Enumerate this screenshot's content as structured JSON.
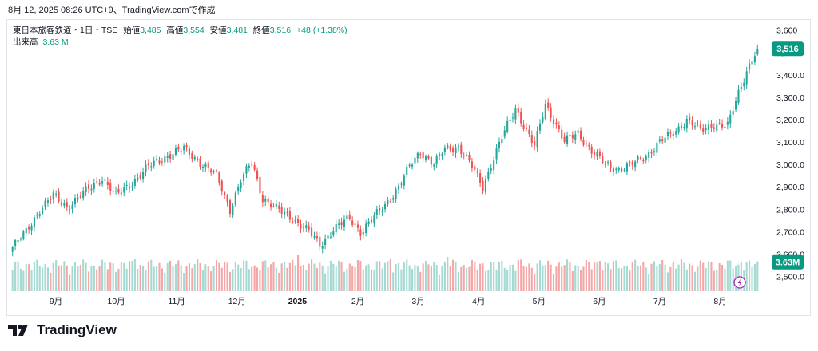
{
  "header": {
    "caption": "8月 12, 2025 08:26 UTC+9、TradingView.comで作成"
  },
  "legend": {
    "symbol": "東日本旅客鉄道・1日・TSE",
    "open_label": "始値",
    "open": "3,485",
    "high_label": "高値",
    "high": "3,554",
    "low_label": "安値",
    "low": "3,481",
    "close_label": "終値",
    "close": "3,516",
    "change": "+48 (+1.38%)",
    "volume_label": "出来高",
    "volume": "3.63 M"
  },
  "price_tag": "3,516",
  "volume_tag": "3.63M",
  "brand": {
    "name": "TradingView",
    "logo": "tradingview-logo-icon"
  },
  "colors": {
    "up": "#26a69a",
    "down": "#ef5350",
    "up_vol": "#a5dad3",
    "down_vol": "#f5a6a6",
    "tag": "#089981"
  },
  "chart_data": {
    "type": "candlestick",
    "price_axis": {
      "ylim": [
        2470,
        3620
      ],
      "ticks": [
        2500,
        2600,
        2700,
        2800,
        2900,
        3000,
        3100,
        3200,
        3300,
        3400,
        3500,
        3600
      ],
      "tick_labels": [
        "2,500.0",
        "2,600.0",
        "2,700.0",
        "2,800.0",
        "2,900.0",
        "3,000.0",
        "3,100.0",
        "3,200.0",
        "3,300.0",
        "3,400.0",
        "3,500.0",
        "3,600"
      ]
    },
    "time_axis": {
      "labels": [
        "9月",
        "10月",
        "11月",
        "12月",
        "2025",
        "2月",
        "3月",
        "4月",
        "5月",
        "6月",
        "7月",
        "8月"
      ],
      "bold": [
        "2025"
      ]
    },
    "date_range": [
      "2024-08",
      "2025-08-08"
    ],
    "last_close": 3516,
    "last_volume_m": 3.63,
    "close_path": [
      [
        0,
        2630
      ],
      [
        5,
        2700
      ],
      [
        10,
        2800
      ],
      [
        15,
        2860
      ],
      [
        20,
        2810
      ],
      [
        27,
        2880
      ],
      [
        33,
        2940
      ],
      [
        38,
        2860
      ],
      [
        44,
        2920
      ],
      [
        50,
        2990
      ],
      [
        57,
        3040
      ],
      [
        63,
        3070
      ],
      [
        70,
        3000
      ],
      [
        75,
        2950
      ],
      [
        80,
        2800
      ],
      [
        84,
        2930
      ],
      [
        88,
        3010
      ],
      [
        92,
        2850
      ],
      [
        97,
        2800
      ],
      [
        103,
        2760
      ],
      [
        109,
        2700
      ],
      [
        113,
        2640
      ],
      [
        118,
        2710
      ],
      [
        124,
        2760
      ],
      [
        128,
        2700
      ],
      [
        132,
        2750
      ],
      [
        137,
        2820
      ],
      [
        142,
        2900
      ],
      [
        146,
        2990
      ],
      [
        150,
        3060
      ],
      [
        155,
        3000
      ],
      [
        159,
        3070
      ],
      [
        164,
        3080
      ],
      [
        169,
        2990
      ],
      [
        173,
        2900
      ],
      [
        176,
        3000
      ],
      [
        180,
        3120
      ],
      [
        185,
        3250
      ],
      [
        189,
        3150
      ],
      [
        192,
        3080
      ],
      [
        196,
        3270
      ],
      [
        199,
        3200
      ],
      [
        203,
        3100
      ],
      [
        208,
        3140
      ],
      [
        213,
        3060
      ],
      [
        218,
        3000
      ],
      [
        223,
        2980
      ],
      [
        228,
        3000
      ],
      [
        233,
        3040
      ],
      [
        238,
        3100
      ],
      [
        243,
        3140
      ],
      [
        248,
        3200
      ],
      [
        253,
        3150
      ],
      [
        258,
        3180
      ],
      [
        263,
        3170
      ],
      [
        267,
        3320
      ],
      [
        270,
        3420
      ],
      [
        272,
        3470
      ],
      [
        274,
        3516
      ]
    ],
    "volume": {
      "baseline_m": 1.9,
      "spikes": [
        [
          45,
          4.0
        ],
        [
          105,
          4.5
        ],
        [
          139,
          4.0
        ],
        [
          152,
          3.8
        ],
        [
          160,
          4.3
        ],
        [
          186,
          3.9
        ],
        [
          216,
          3.8
        ],
        [
          243,
          3.6
        ],
        [
          268,
          3.63
        ]
      ]
    }
  }
}
